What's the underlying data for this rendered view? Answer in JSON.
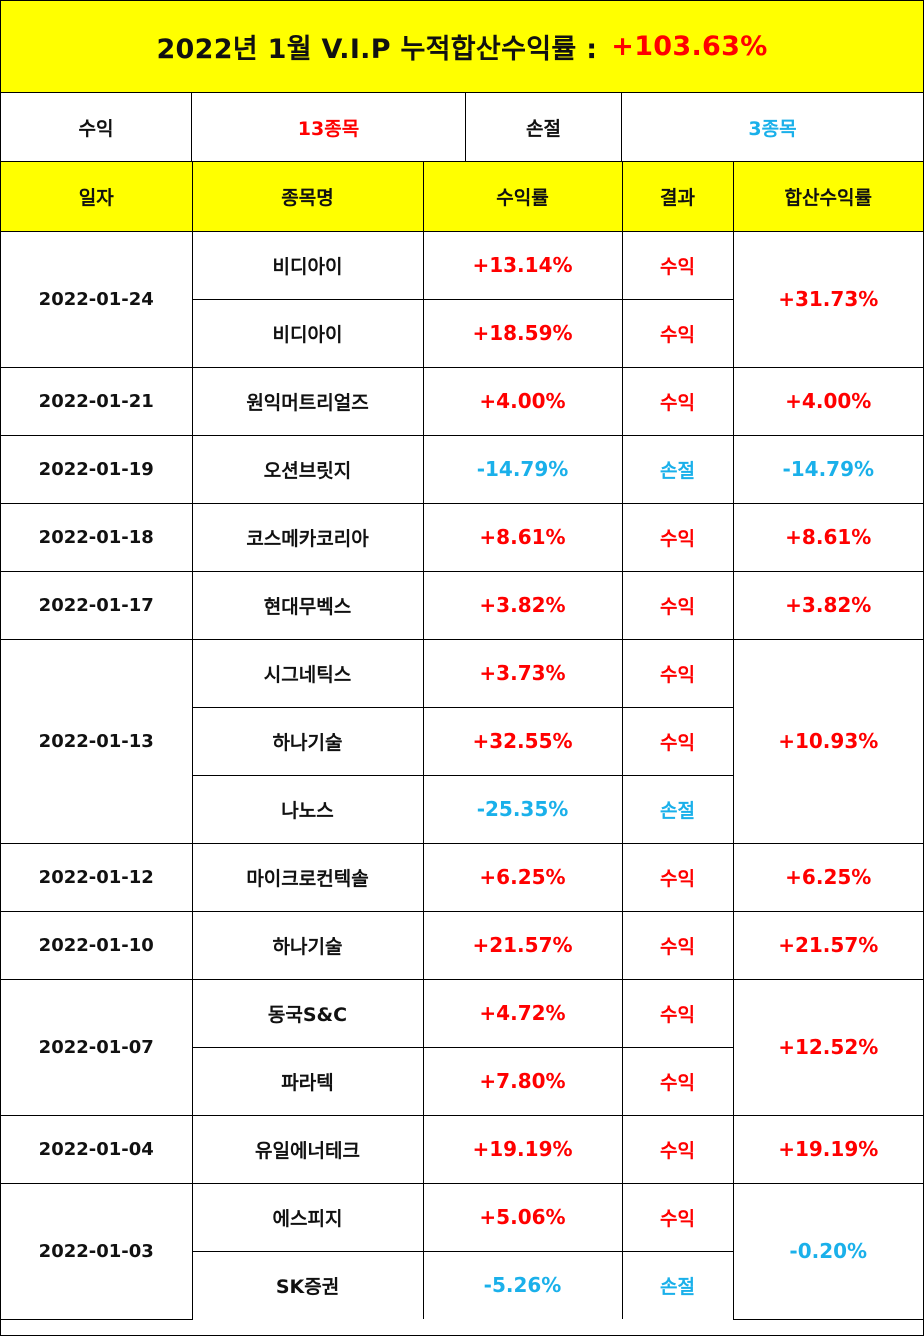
{
  "title": {
    "text": "2022년 1월 V.I.P 누적합산수익률 :",
    "total": "+103.63%"
  },
  "summary": {
    "profit_label": "수익",
    "profit_count": "13종목",
    "loss_label": "손절",
    "loss_count": "3종목"
  },
  "headers": {
    "date": "일자",
    "stock": "종목명",
    "rate": "수익률",
    "result": "결과",
    "combined": "합산수익률"
  },
  "colors": {
    "profit": "#ff0000",
    "loss": "#1ab0ea",
    "highlight": "#ffff00"
  },
  "groups": [
    {
      "date": "2022-01-24",
      "combined": "+31.73%",
      "combined_type": "profit",
      "rows": [
        {
          "stock": "비디아이",
          "rate": "+13.14%",
          "result": "수익",
          "type": "profit"
        },
        {
          "stock": "비디아이",
          "rate": "+18.59%",
          "result": "수익",
          "type": "profit"
        }
      ]
    },
    {
      "date": "2022-01-21",
      "combined": "+4.00%",
      "combined_type": "profit",
      "rows": [
        {
          "stock": "원익머트리얼즈",
          "rate": "+4.00%",
          "result": "수익",
          "type": "profit"
        }
      ]
    },
    {
      "date": "2022-01-19",
      "combined": "-14.79%",
      "combined_type": "loss",
      "rows": [
        {
          "stock": "오션브릿지",
          "rate": "-14.79%",
          "result": "손절",
          "type": "loss"
        }
      ]
    },
    {
      "date": "2022-01-18",
      "combined": "+8.61%",
      "combined_type": "profit",
      "rows": [
        {
          "stock": "코스메카코리아",
          "rate": "+8.61%",
          "result": "수익",
          "type": "profit"
        }
      ]
    },
    {
      "date": "2022-01-17",
      "combined": "+3.82%",
      "combined_type": "profit",
      "rows": [
        {
          "stock": "현대무벡스",
          "rate": "+3.82%",
          "result": "수익",
          "type": "profit"
        }
      ]
    },
    {
      "date": "2022-01-13",
      "combined": "+10.93%",
      "combined_type": "profit",
      "rows": [
        {
          "stock": "시그네틱스",
          "rate": "+3.73%",
          "result": "수익",
          "type": "profit"
        },
        {
          "stock": "하나기술",
          "rate": "+32.55%",
          "result": "수익",
          "type": "profit"
        },
        {
          "stock": "나노스",
          "rate": "-25.35%",
          "result": "손절",
          "type": "loss"
        }
      ]
    },
    {
      "date": "2022-01-12",
      "combined": "+6.25%",
      "combined_type": "profit",
      "rows": [
        {
          "stock": "마이크로컨텍솔",
          "rate": "+6.25%",
          "result": "수익",
          "type": "profit"
        }
      ]
    },
    {
      "date": "2022-01-10",
      "combined": "+21.57%",
      "combined_type": "profit",
      "rows": [
        {
          "stock": "하나기술",
          "rate": "+21.57%",
          "result": "수익",
          "type": "profit"
        }
      ]
    },
    {
      "date": "2022-01-07",
      "combined": "+12.52%",
      "combined_type": "profit",
      "rows": [
        {
          "stock": "동국S&C",
          "rate": "+4.72%",
          "result": "수익",
          "type": "profit"
        },
        {
          "stock": "파라텍",
          "rate": "+7.80%",
          "result": "수익",
          "type": "profit"
        }
      ]
    },
    {
      "date": "2022-01-04",
      "combined": "+19.19%",
      "combined_type": "profit",
      "rows": [
        {
          "stock": "유일에너테크",
          "rate": "+19.19%",
          "result": "수익",
          "type": "profit"
        }
      ]
    },
    {
      "date": "2022-01-03",
      "combined": "-0.20%",
      "combined_type": "loss",
      "rows": [
        {
          "stock": "에스피지",
          "rate": "+5.06%",
          "result": "수익",
          "type": "profit"
        },
        {
          "stock": "SK증권",
          "rate": "-5.26%",
          "result": "손절",
          "type": "loss"
        }
      ]
    }
  ]
}
